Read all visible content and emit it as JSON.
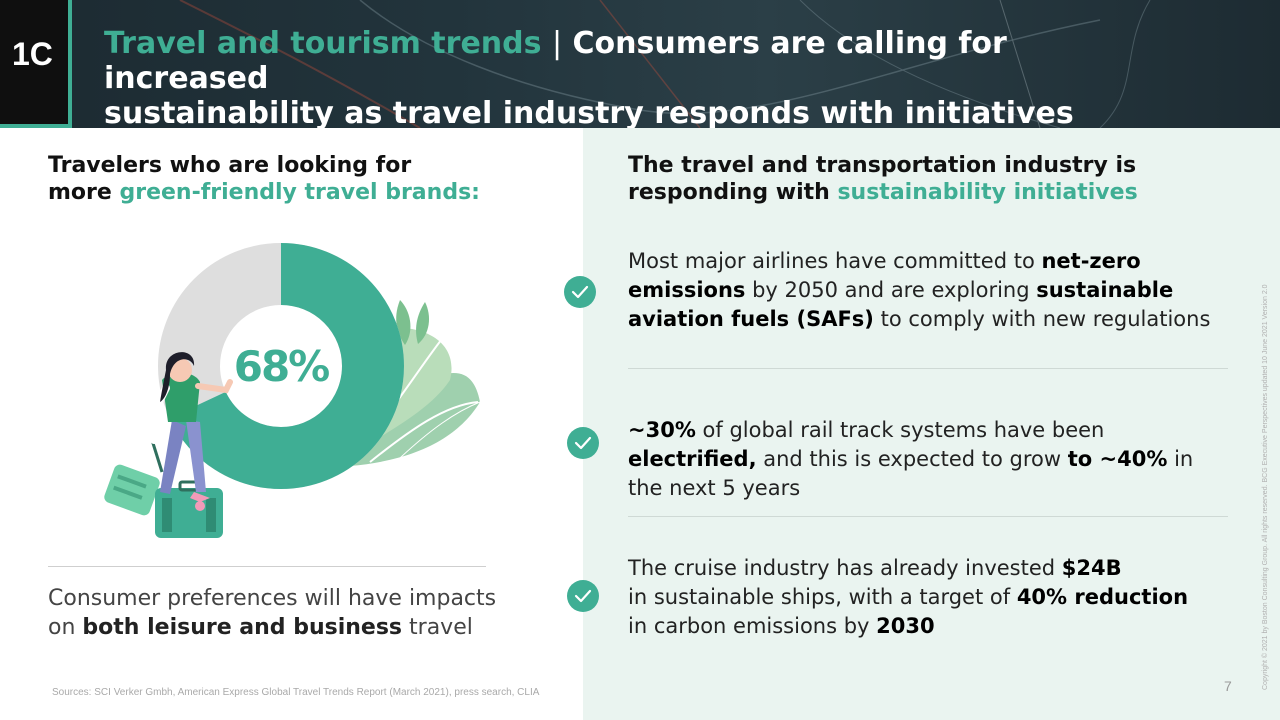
{
  "header": {
    "badge": "1C",
    "title_accent": "Travel and tourism trends",
    "separator": "|",
    "title_line1": " Consumers are calling for increased",
    "title_line2": "sustainability as travel industry responds with initiatives"
  },
  "left": {
    "heading_part1": "Travelers who are looking for",
    "heading_part2": "more ",
    "heading_highlight": "green-friendly travel brands:",
    "stat_label": "68%",
    "stat_value": 68,
    "note_part1": "Consumer preferences will have impacts",
    "note_part2": "on ",
    "note_bold": "both leisure and business",
    "note_part3": " travel",
    "sources": "Sources: SCI Verker Gmbh, American Express Global Travel Trends Report (March 2021), press search, CLIA"
  },
  "right": {
    "heading_part1": "The travel and transportation industry is",
    "heading_part2": "responding with ",
    "heading_highlight": "sustainability initiatives",
    "items": [
      {
        "t1": "Most major airlines have committed to ",
        "b1": "net-zero emissions",
        "t2": " by 2050 and are exploring ",
        "b2": "sustainable aviation fuels (SAFs)",
        "t3": " to comply with new regulations"
      },
      {
        "b1": "~30%",
        "t1": " of global rail track systems have been ",
        "b2": "electrified,",
        "t2": " and this is expected to grow ",
        "b3": "to ~40%",
        "t3": " in the next 5 years"
      },
      {
        "t1": "The cruise industry has already invested ",
        "b1": "$24B",
        "t2": "in sustainable ships, with a target of ",
        "b2": "40% reduction",
        "t3": "in carbon emissions by ",
        "b3": "2030"
      }
    ]
  },
  "footer": {
    "page_number": "7",
    "copyright": "Copyright © 2021 by Boston Consulting Group. All rights reserved. BCG Executive Perspectives updated 10 June 2021 Version 2.0"
  },
  "colors": {
    "accent": "#3fae94",
    "panel": "#eaf4f0",
    "donut_rest": "#dedede"
  }
}
